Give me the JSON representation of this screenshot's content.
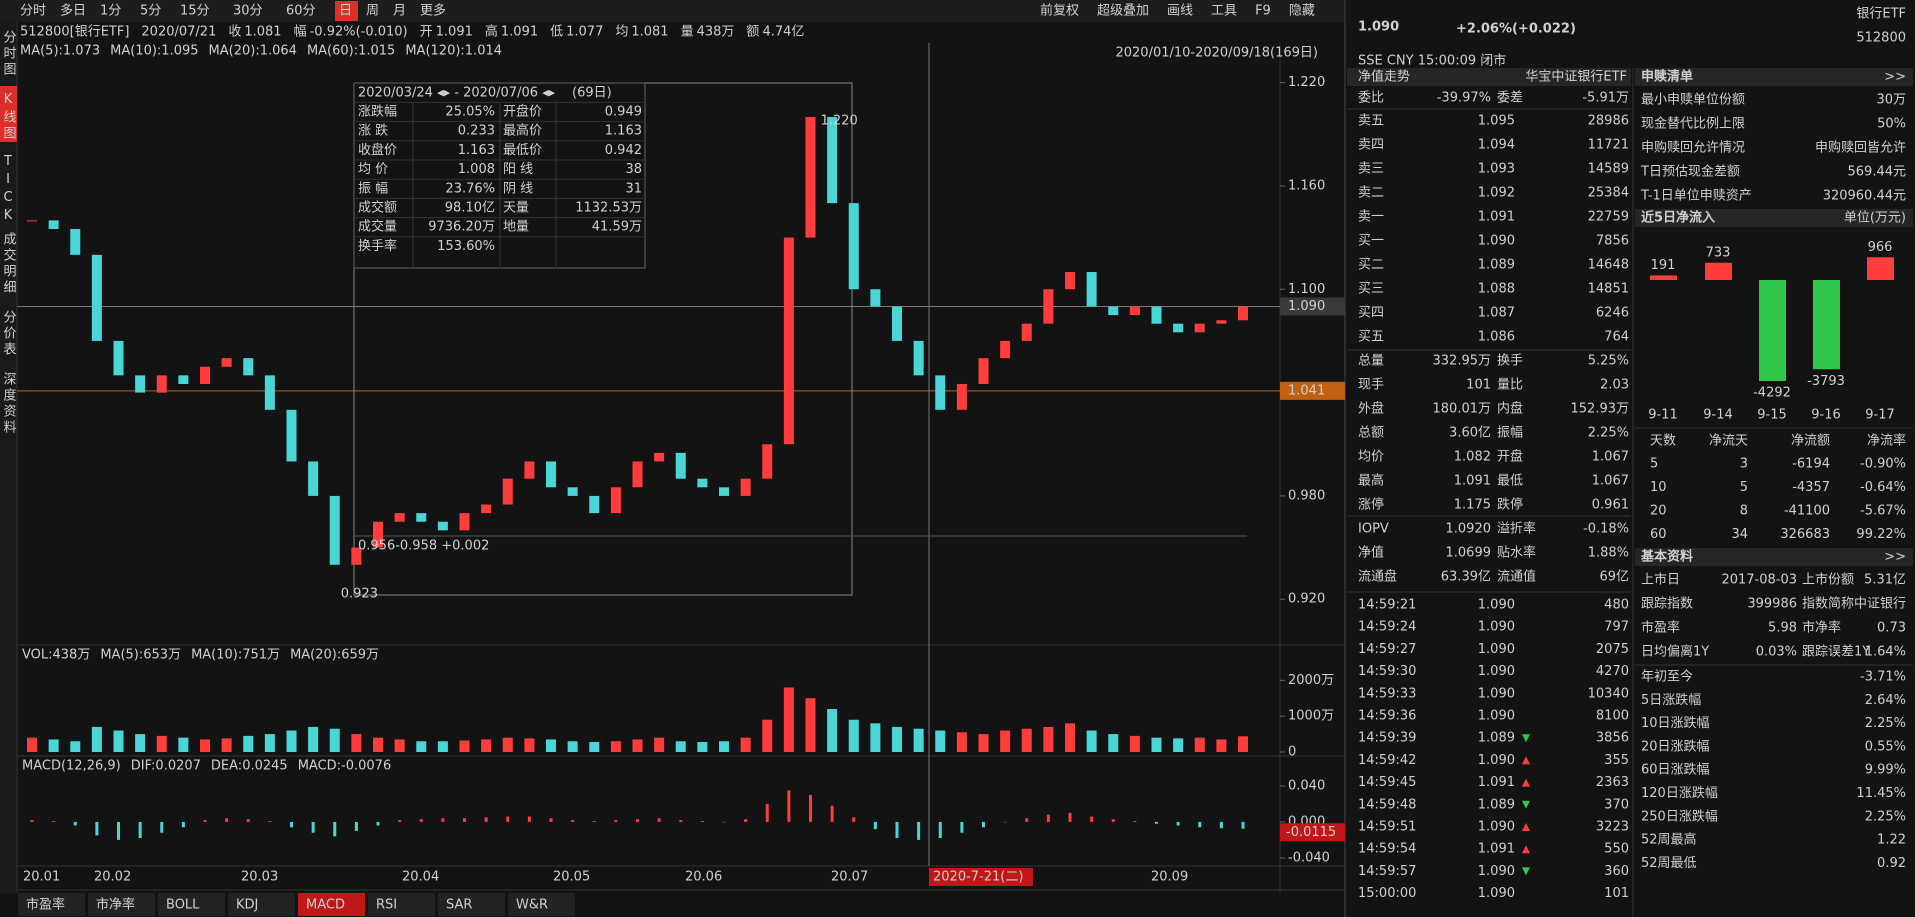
{
  "toolbar": {
    "periods": [
      "分时",
      "多日",
      "1分",
      "5分",
      "15分",
      "30分",
      "60分",
      "日",
      "周",
      "月",
      "更多"
    ],
    "active": "日",
    "tools": [
      "前复权",
      "超级叠加",
      "画线",
      "工具",
      "F9",
      "隐藏"
    ]
  },
  "side_tabs": {
    "items": [
      "分时图",
      "K线图",
      "TICK",
      "成交明细",
      "分价表",
      "深度资料"
    ],
    "active": "K线图"
  },
  "info_bar": [
    {
      "text": "512800[银行ETF]",
      "color": "#d0d0d0"
    },
    {
      "text": "2020/07/21",
      "color": "#d0d0d0"
    },
    {
      "label": "收",
      "text": "1.081",
      "color": "#2fc84a"
    },
    {
      "label": "幅",
      "text": "-0.92%(-0.010)",
      "color": "#2fc84a"
    },
    {
      "label": "开",
      "text": "1.091",
      "color": "#ff3d3d"
    },
    {
      "label": "高",
      "text": "1.091",
      "color": "#ff3d3d"
    },
    {
      "label": "低",
      "text": "1.077",
      "color": "#2fc84a"
    },
    {
      "label": "均",
      "text": "1.081",
      "color": "#2fc84a"
    },
    {
      "label": "量",
      "text": "438万",
      "color": "#d0d0d0"
    },
    {
      "label": "额",
      "text": "4.74亿",
      "color": "#d0d0d0"
    }
  ],
  "ma_legend": [
    {
      "text": "MA(5):1.073",
      "color": "#f0f0f0"
    },
    {
      "text": "MA(10):1.095",
      "color": "#ffb020"
    },
    {
      "text": "MA(20):1.064",
      "color": "#e040e0"
    },
    {
      "text": "MA(60):1.015",
      "color": "#40c040"
    },
    {
      "text": "MA(120):1.014",
      "color": "#60d0ff"
    }
  ],
  "range_label": "2020/01/10-2020/09/18(169日)",
  "chart_data": {
    "type": "candlestick",
    "close": [
      1.14,
      1.135,
      1.12,
      1.07,
      1.05,
      1.04,
      1.05,
      1.045,
      1.055,
      1.06,
      1.05,
      1.03,
      1.0,
      0.98,
      0.94,
      0.95,
      0.965,
      0.97,
      0.965,
      0.96,
      0.97,
      0.975,
      0.99,
      1.0,
      0.985,
      0.98,
      0.97,
      0.985,
      1.0,
      1.005,
      0.99,
      0.985,
      0.98,
      0.99,
      1.01,
      1.13,
      1.2,
      1.15,
      1.1,
      1.09,
      1.07,
      1.05,
      1.03,
      1.045,
      1.06,
      1.07,
      1.08,
      1.1,
      1.11,
      1.09,
      1.085,
      1.09,
      1.08,
      1.075,
      1.08,
      1.082,
      1.09
    ],
    "up_color": "#ff3d3d",
    "down_color": "#4ad6d6",
    "ylim": [
      0.894,
      1.243
    ],
    "yticks": [
      {
        "value": 1.22,
        "label": "1.220"
      },
      {
        "value": 1.16,
        "label": "1.160"
      },
      {
        "value": 1.1,
        "label": "1.100"
      },
      {
        "value": 0.98,
        "label": "0.980"
      },
      {
        "value": 0.92,
        "label": "0.920"
      }
    ],
    "last_price": {
      "value": 1.09,
      "label": "1.090"
    },
    "cursor_price": {
      "value": 1.041,
      "label": "1.041"
    },
    "high_label": "1.220",
    "low_label": "0.923",
    "range_note": "0.956-0.958  +0.002",
    "x_labels": [
      "20.01",
      "20.02",
      "20.03",
      "20.04",
      "20.05",
      "20.06",
      "20.07",
      "20.09"
    ],
    "cursor_date": "2020-7-21(二)",
    "volume": {
      "header": [
        {
          "text": "VOL:438万",
          "color": "#f0f0f0"
        },
        {
          "text": "MA(5):653万",
          "color": "#f0f0f0"
        },
        {
          "text": "MA(10):751万",
          "color": "#ffb020"
        },
        {
          "text": "MA(20):659万",
          "color": "#e040e0"
        }
      ],
      "values": [
        400,
        350,
        300,
        700,
        600,
        500,
        450,
        400,
        350,
        380,
        450,
        500,
        600,
        700,
        650,
        500,
        400,
        350,
        300,
        300,
        320,
        350,
        400,
        380,
        350,
        300,
        280,
        300,
        350,
        400,
        300,
        280,
        300,
        400,
        900,
        1800,
        1500,
        1200,
        900,
        800,
        700,
        650,
        600,
        550,
        500,
        600,
        650,
        700,
        800,
        600,
        500,
        450,
        400,
        380,
        400,
        350,
        438
      ],
      "ylim": [
        0,
        2400
      ],
      "yticks": [
        {
          "value": 2000,
          "label": "2000万"
        },
        {
          "value": 1000,
          "label": "1000万"
        },
        0
      ]
    },
    "macd": {
      "header": [
        {
          "text": "MACD(12,26,9)",
          "color": "#f0f0f0"
        },
        {
          "text": "DIF:0.0207",
          "color": "#f0f0f0"
        },
        {
          "text": "DEA:0.0245",
          "color": "#ffb020"
        },
        {
          "text": "MACD:-0.0076",
          "color": "#e040e0"
        }
      ],
      "values": [
        0.002,
        0.001,
        -0.004,
        -0.015,
        -0.02,
        -0.018,
        -0.012,
        -0.006,
        0.002,
        0.004,
        0.003,
        0.001,
        -0.006,
        -0.012,
        -0.016,
        -0.01,
        -0.004,
        0.002,
        0.003,
        0.004,
        0.004,
        0.005,
        0.006,
        0.006,
        0.004,
        0.002,
        0.001,
        0.002,
        0.003,
        0.004,
        0.002,
        0.001,
        0.0,
        0.003,
        0.02,
        0.035,
        0.03,
        0.018,
        0.005,
        -0.008,
        -0.018,
        -0.02,
        -0.018,
        -0.012,
        -0.006,
        0.0,
        0.004,
        0.008,
        0.01,
        0.006,
        0.003,
        0.001,
        -0.002,
        -0.004,
        -0.006,
        -0.007,
        -0.0076
      ],
      "ylim": [
        -0.049,
        0.051
      ],
      "yticks": [
        {
          "value": 0.04,
          "label": "0.040"
        },
        {
          "value": 0,
          "label": "0.000"
        },
        {
          "value": -0.04,
          "label": "-0.040"
        }
      ],
      "current": {
        "value": -0.0115,
        "label": "-0.0115"
      }
    }
  },
  "stat_box": {
    "title": [
      "2020/03/24 ◂▸ - 2020/07/06 ◂▸",
      "(69日)"
    ],
    "rows": [
      [
        "涨跌幅",
        "25.05%",
        "开盘价",
        "0.949"
      ],
      [
        "涨 跌",
        "0.233",
        "最高价",
        "1.163"
      ],
      [
        "收盘价",
        "1.163",
        "最低价",
        "0.942"
      ],
      [
        "均 价",
        "1.008",
        "阳 线",
        "38"
      ],
      [
        "振 幅",
        "23.76%",
        "阴 线",
        "31"
      ],
      [
        "成交额",
        "98.10亿",
        "天量",
        "1132.53万"
      ],
      [
        "成交量",
        "9736.20万",
        "地量",
        "41.59万"
      ],
      [
        "换手率",
        "153.60%"
      ]
    ],
    "colors": [
      [
        "#ff3d3d",
        "#ff3d3d"
      ],
      [
        "#ff3d3d",
        "#ff3d3d"
      ],
      [
        "#ff3d3d",
        "#ff3d3d"
      ],
      [
        "#ff3d3d",
        "#ff3d3d"
      ],
      [
        "#ff3d3d",
        "#2fc84a"
      ],
      [
        "#d0d0d0",
        "#d0d0d0"
      ],
      [
        "#d0d0d0",
        "#d0d0d0"
      ],
      [
        "#d0d0d0"
      ]
    ]
  },
  "bottom_tabs": {
    "items": [
      "市盈率",
      "市净率",
      "BOLL",
      "KDJ",
      "MACD",
      "RSI",
      "SAR",
      "W&R"
    ],
    "active": "MACD"
  },
  "quote": {
    "price": "1.090",
    "change": "+2.06%(+0.022)",
    "name": "银行ETF",
    "code": "512800",
    "status": "SSE  CNY  15:00:09  闭市",
    "nav_title": [
      "净值走势",
      "华宝中证银行ETF"
    ],
    "commission": [
      "委比",
      "-39.97%",
      "委差",
      "-5.91万"
    ],
    "asks": [
      [
        "卖五",
        "1.095",
        "28986"
      ],
      [
        "卖四",
        "1.094",
        "11721"
      ],
      [
        "卖三",
        "1.093",
        "14589"
      ],
      [
        "卖二",
        "1.092",
        "25384"
      ],
      [
        "卖一",
        "1.091",
        "22759"
      ]
    ],
    "bids": [
      [
        "买一",
        "1.090",
        "7856"
      ],
      [
        "买二",
        "1.089",
        "14648"
      ],
      [
        "买三",
        "1.088",
        "14851"
      ],
      [
        "买四",
        "1.087",
        "6246"
      ],
      [
        "买五",
        "1.086",
        "764"
      ]
    ],
    "stats": [
      [
        "总量",
        "332.95万",
        "换手",
        "5.25%"
      ],
      [
        "现手",
        "101",
        "量比",
        "2.03"
      ],
      [
        "外盘",
        "180.01万",
        "内盘",
        "152.93万"
      ],
      [
        "总额",
        "3.60亿",
        "振幅",
        "2.25%"
      ],
      [
        "均价",
        "1.082",
        "开盘",
        "1.067"
      ],
      [
        "最高",
        "1.091",
        "最低",
        "1.067"
      ],
      [
        "涨停",
        "1.175",
        "跌停",
        "0.961"
      ]
    ],
    "stats_colors": [
      [
        "#d0d0d0",
        "#d0d0d0"
      ],
      [
        "#d0d0d0",
        "#d0d0d0"
      ],
      [
        "#ff3d3d",
        "#2fc84a"
      ],
      [
        "#d0d0d0",
        "#d0d0d0"
      ],
      [
        "#ff3d3d",
        "#2fc84a"
      ],
      [
        "#ff3d3d",
        "#2fc84a"
      ],
      [
        "#ff3d3d",
        "#2fc84a"
      ]
    ],
    "nav": [
      [
        "IOPV",
        "1.0920",
        "溢折率",
        "-0.18%"
      ],
      [
        "净值",
        "1.0699",
        "贴水率",
        "1.88%"
      ],
      [
        "流通盘",
        "63.39亿",
        "流通值",
        "69亿"
      ]
    ],
    "nav_colors": [
      [
        "#d0d0d0",
        "#2fc84a"
      ],
      [
        "#d0d0d0",
        "#ff3d3d"
      ],
      [
        "#d0d0d0",
        "#d0d0d0"
      ]
    ],
    "trades": [
      [
        "14:59:21",
        "1.090",
        "480",
        "none"
      ],
      [
        "14:59:24",
        "1.090",
        "797",
        "none"
      ],
      [
        "14:59:27",
        "1.090",
        "2075",
        "none"
      ],
      [
        "14:59:30",
        "1.090",
        "4270",
        "none"
      ],
      [
        "14:59:33",
        "1.090",
        "10340",
        "none"
      ],
      [
        "14:59:36",
        "1.090",
        "8100",
        "none"
      ],
      [
        "14:59:39",
        "1.089",
        "3856",
        "down"
      ],
      [
        "14:59:42",
        "1.090",
        "355",
        "up"
      ],
      [
        "14:59:45",
        "1.091",
        "2363",
        "up"
      ],
      [
        "14:59:48",
        "1.089",
        "370",
        "down"
      ],
      [
        "14:59:51",
        "1.090",
        "3223",
        "up"
      ],
      [
        "14:59:54",
        "1.091",
        "550",
        "up"
      ],
      [
        "14:59:57",
        "1.090",
        "360",
        "down"
      ],
      [
        "15:00:00",
        "1.090",
        "101",
        "none"
      ]
    ]
  },
  "creation": {
    "title": "申赎清单",
    "more": ">>",
    "rows": [
      [
        "最小申赎单位份额",
        "30万"
      ],
      [
        "现金替代比例上限",
        "50%"
      ],
      [
        "申购赎回允许情况",
        "申购赎回皆允许"
      ],
      [
        "T日预估现金差额",
        "569.44元"
      ],
      [
        "T-1日单位申赎资产",
        "320960.44元"
      ]
    ]
  },
  "net_inflow": {
    "title": "近5日净流入",
    "unit": "单位(万元)",
    "type": "bar",
    "categories": [
      "9-11",
      "9-14",
      "9-15",
      "9-16",
      "9-17"
    ],
    "values": [
      191,
      733,
      -4292,
      -3793,
      966
    ],
    "up_color": "#ff3d3d",
    "down_color": "#2fc84a",
    "table": {
      "header": [
        "天数",
        "净流天",
        "净流额",
        "净流率"
      ],
      "rows": [
        [
          "5",
          "3",
          "-6194",
          "-0.90%"
        ],
        [
          "10",
          "5",
          "-4357",
          "-0.64%"
        ],
        [
          "20",
          "8",
          "-41100",
          "-5.67%"
        ],
        [
          "60",
          "34",
          "326683",
          "99.22%"
        ]
      ],
      "colors": [
        [
          "#ff3d3d",
          "#2fc84a",
          "#2fc84a"
        ],
        [
          "#ff3d3d",
          "#2fc84a",
          "#2fc84a"
        ],
        [
          "#ff3d3d",
          "#2fc84a",
          "#2fc84a"
        ],
        [
          "#ff3d3d",
          "#ff3d3d",
          "#ff3d3d"
        ]
      ]
    }
  },
  "basics": {
    "title": "基本资料",
    "more": ">>",
    "rows": [
      [
        "上市日",
        "2017-08-03",
        "上市份额",
        "5.31亿"
      ],
      [
        "跟踪指数",
        "399986",
        "指数简称",
        "中证银行"
      ],
      [
        "市盈率",
        "5.98",
        "市净率",
        "0.73"
      ],
      [
        "日均偏离1Y",
        "0.03%",
        "跟踪误差1Y",
        "1.64%"
      ]
    ],
    "performance": [
      [
        "年初至今",
        "-3.71%"
      ],
      [
        "5日涨跌幅",
        "2.64%"
      ],
      [
        "10日涨跌幅",
        "2.25%"
      ],
      [
        "20日涨跌幅",
        "0.55%"
      ],
      [
        "60日涨跌幅",
        "9.99%"
      ],
      [
        "120日涨跌幅",
        "11.45%"
      ],
      [
        "250日涨跌幅",
        "2.25%"
      ],
      [
        "52周最高",
        "1.22"
      ],
      [
        "52周最低",
        "0.92"
      ]
    ],
    "performance_colors": [
      "#2fc84a",
      "#ff3d3d",
      "#ff3d3d",
      "#ff3d3d",
      "#ff3d3d",
      "#ff3d3d",
      "#ff3d3d",
      "#d0d0d0",
      "#d0d0d0"
    ]
  }
}
